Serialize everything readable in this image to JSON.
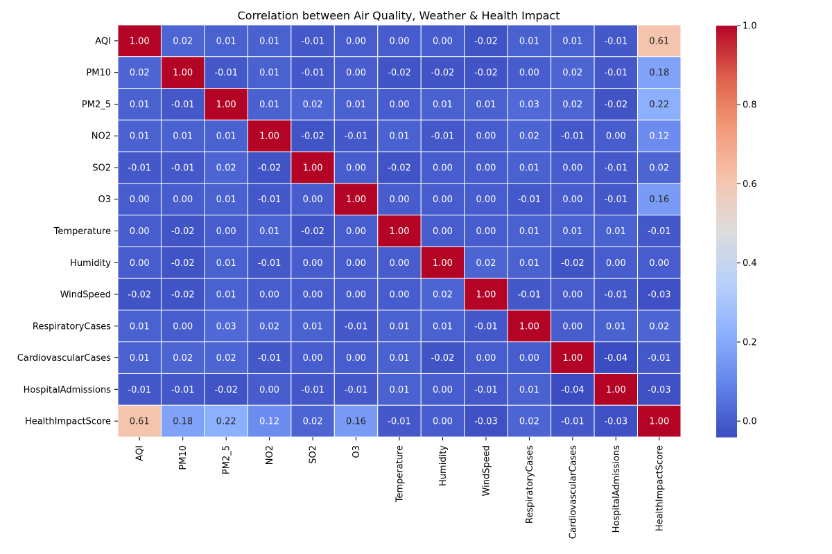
{
  "chart_data": {
    "type": "heatmap",
    "title": "Correlation between Air Quality, Weather & Health Impact",
    "xlabel": "",
    "ylabel": "",
    "colormap": "coolwarm",
    "vmin": -0.04,
    "vmax": 1.0,
    "labels": [
      "AQI",
      "PM10",
      "PM2_5",
      "NO2",
      "SO2",
      "O3",
      "Temperature",
      "Humidity",
      "WindSpeed",
      "RespiratoryCases",
      "CardiovascularCases",
      "HospitalAdmissions",
      "HealthImpactScore"
    ],
    "matrix": [
      [
        1.0,
        0.02,
        0.01,
        0.01,
        -0.01,
        0.0,
        0.0,
        -0.0,
        -0.02,
        0.01,
        0.01,
        -0.01,
        0.61
      ],
      [
        0.02,
        1.0,
        -0.01,
        0.01,
        -0.01,
        -0.0,
        -0.02,
        -0.02,
        -0.02,
        -0.0,
        0.02,
        -0.01,
        0.18
      ],
      [
        0.01,
        -0.01,
        1.0,
        0.01,
        0.02,
        0.01,
        -0.0,
        0.01,
        0.01,
        0.03,
        0.02,
        -0.02,
        0.22
      ],
      [
        0.01,
        0.01,
        0.01,
        1.0,
        -0.02,
        -0.01,
        0.01,
        -0.01,
        -0.0,
        0.02,
        -0.01,
        -0.0,
        0.12
      ],
      [
        -0.01,
        -0.01,
        0.02,
        -0.02,
        1.0,
        -0.0,
        -0.02,
        0.0,
        -0.0,
        0.01,
        -0.0,
        -0.01,
        0.02
      ],
      [
        0.0,
        -0.0,
        0.01,
        -0.01,
        -0.0,
        1.0,
        -0.0,
        0.0,
        -0.0,
        -0.01,
        0.0,
        -0.01,
        0.16
      ],
      [
        0.0,
        -0.02,
        -0.0,
        0.01,
        -0.02,
        -0.0,
        1.0,
        -0.0,
        0.0,
        0.01,
        0.01,
        0.01,
        -0.01
      ],
      [
        -0.0,
        -0.02,
        0.01,
        -0.01,
        0.0,
        0.0,
        -0.0,
        1.0,
        0.02,
        0.01,
        -0.02,
        -0.0,
        0.0
      ],
      [
        -0.02,
        -0.02,
        0.01,
        -0.0,
        -0.0,
        -0.0,
        0.0,
        0.02,
        1.0,
        -0.01,
        0.0,
        -0.01,
        -0.03
      ],
      [
        0.01,
        -0.0,
        0.03,
        0.02,
        0.01,
        -0.01,
        0.01,
        0.01,
        -0.01,
        1.0,
        -0.0,
        0.01,
        0.02
      ],
      [
        0.01,
        0.02,
        0.02,
        -0.01,
        -0.0,
        0.0,
        0.01,
        -0.02,
        0.0,
        -0.0,
        1.0,
        -0.04,
        -0.01
      ],
      [
        -0.01,
        -0.01,
        -0.02,
        -0.0,
        -0.01,
        -0.01,
        0.01,
        -0.0,
        -0.01,
        0.01,
        -0.04,
        1.0,
        -0.03
      ],
      [
        0.61,
        0.18,
        0.22,
        0.12,
        0.02,
        0.16,
        -0.01,
        0.0,
        -0.03,
        0.02,
        -0.01,
        -0.03,
        1.0
      ]
    ],
    "colorbar_ticks": [
      "0.0",
      "0.2",
      "0.4",
      "0.6",
      "0.8",
      "1.0"
    ],
    "colorbar_tick_values": [
      0.0,
      0.2,
      0.4,
      0.6,
      0.8,
      1.0
    ]
  }
}
